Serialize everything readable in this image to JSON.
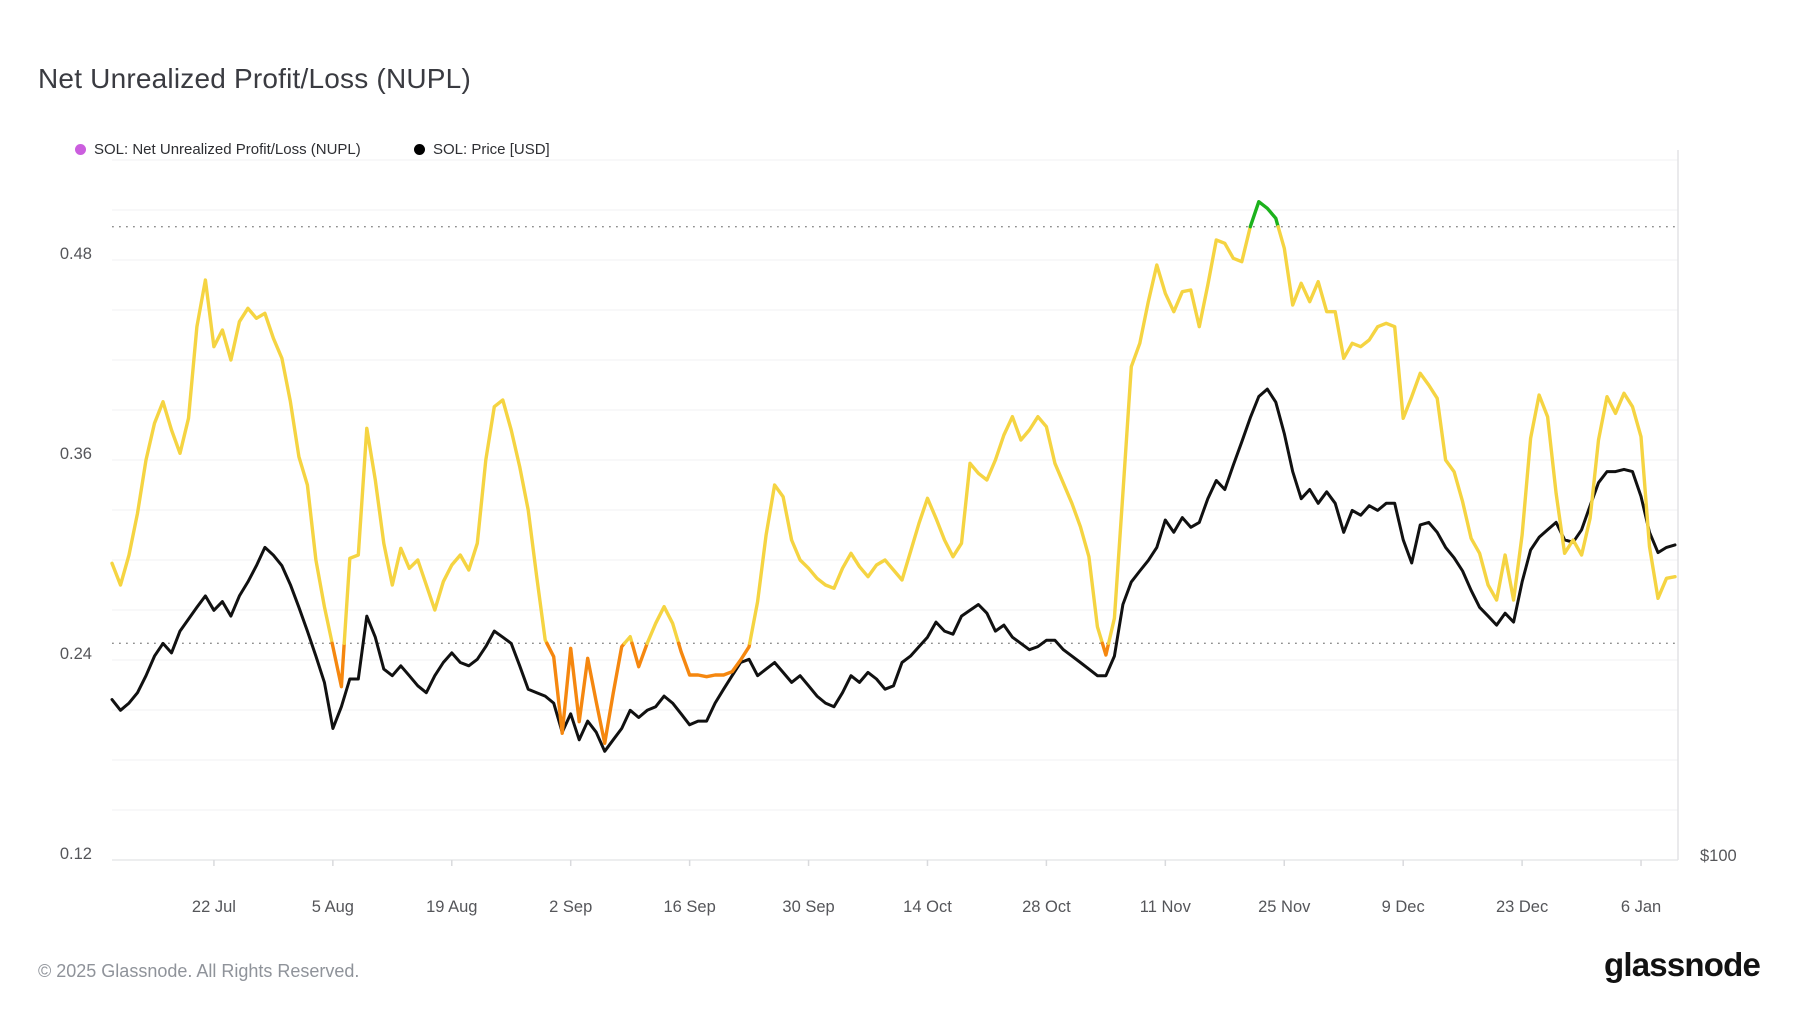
{
  "header": {
    "title": "Net Unrealized Profit/Loss (NUPL)"
  },
  "legend": [
    {
      "label": "SOL: Net Unrealized Profit/Loss (NUPL)",
      "dot_color": "#cb5ede"
    },
    {
      "label": "SOL: Price [USD]",
      "dot_color": "#000000"
    }
  ],
  "footer": {
    "copyright": "© 2025 Glassnode. All Rights Reserved.",
    "logo_text": "glassnode"
  },
  "chart_data": {
    "type": "line",
    "title": "Net Unrealized Profit/Loss (NUPL)",
    "start_date": "2024-07-10",
    "end_date": "2025-01-10",
    "x_tick_labels": [
      "22 Jul",
      "5 Aug",
      "19 Aug",
      "2 Sep",
      "16 Sep",
      "30 Sep",
      "14 Oct",
      "28 Oct",
      "11 Nov",
      "25 Nov",
      "9 Dec",
      "23 Dec",
      "6 Jan"
    ],
    "x_tick_day_offsets": [
      12,
      26,
      40,
      54,
      68,
      82,
      96,
      110,
      124,
      138,
      152,
      166,
      180
    ],
    "y_left_axis": {
      "tick_labels": [
        "0.12",
        "0.24",
        "0.36",
        "0.48"
      ],
      "tick_values": [
        0.12,
        0.24,
        0.36,
        0.48
      ],
      "min": 0.12,
      "grid_step": 0.03,
      "threshold_lines": [
        0.25,
        0.5
      ]
    },
    "y_right_axis": {
      "tick_label": "$100",
      "tick_value": 100,
      "scale": "log"
    },
    "grid": "on",
    "legend_position": "top-left",
    "series": [
      {
        "name": "SOL: Net Unrealized Profit/Loss (NUPL)",
        "legend_color": "#cb5ede",
        "zone_colors": {
          "below_0_25": "#f5870f",
          "between": "#f5d442",
          "above_0_5": "#1cb21c"
        },
        "values": [
          0.298,
          0.285,
          0.303,
          0.328,
          0.36,
          0.382,
          0.395,
          0.378,
          0.364,
          0.385,
          0.44,
          0.468,
          0.428,
          0.438,
          0.42,
          0.443,
          0.451,
          0.445,
          0.448,
          0.433,
          0.421,
          0.395,
          0.362,
          0.345,
          0.3,
          0.272,
          0.248,
          0.224,
          0.301,
          0.303,
          0.379,
          0.348,
          0.31,
          0.285,
          0.307,
          0.295,
          0.3,
          0.285,
          0.27,
          0.287,
          0.297,
          0.303,
          0.294,
          0.31,
          0.36,
          0.392,
          0.396,
          0.378,
          0.356,
          0.33,
          0.29,
          0.252,
          0.242,
          0.196,
          0.247,
          0.203,
          0.241,
          0.215,
          0.19,
          0.22,
          0.248,
          0.254,
          0.236,
          0.25,
          0.262,
          0.272,
          0.262,
          0.245,
          0.231,
          0.231,
          0.23,
          0.231,
          0.231,
          0.233,
          0.24,
          0.248,
          0.275,
          0.315,
          0.345,
          0.338,
          0.312,
          0.3,
          0.295,
          0.289,
          0.285,
          0.283,
          0.295,
          0.304,
          0.296,
          0.29,
          0.297,
          0.3,
          0.294,
          0.288,
          0.305,
          0.322,
          0.337,
          0.325,
          0.312,
          0.302,
          0.31,
          0.358,
          0.352,
          0.348,
          0.36,
          0.375,
          0.386,
          0.372,
          0.378,
          0.386,
          0.38,
          0.358,
          0.346,
          0.334,
          0.32,
          0.302,
          0.26,
          0.243,
          0.265,
          0.34,
          0.416,
          0.43,
          0.455,
          0.477,
          0.46,
          0.449,
          0.461,
          0.462,
          0.44,
          0.465,
          0.492,
          0.49,
          0.481,
          0.479,
          0.5,
          0.515,
          0.511,
          0.505,
          0.487,
          0.453,
          0.466,
          0.455,
          0.467,
          0.449,
          0.449,
          0.421,
          0.43,
          0.428,
          0.432,
          0.44,
          0.442,
          0.44,
          0.385,
          0.398,
          0.412,
          0.405,
          0.397,
          0.36,
          0.353,
          0.335,
          0.313,
          0.304,
          0.285,
          0.276,
          0.303,
          0.276,
          0.315,
          0.373,
          0.399,
          0.386,
          0.34,
          0.304,
          0.312,
          0.303,
          0.325,
          0.372,
          0.398,
          0.388,
          0.4,
          0.392,
          0.374,
          0.308,
          0.277,
          0.289,
          0.29
        ]
      },
      {
        "name": "SOL: Price [USD]",
        "color": "#111111",
        "unit": "USD",
        "values": [
          139,
          136,
          138,
          141,
          146,
          152,
          156,
          153,
          160,
          164,
          168,
          172,
          167,
          170,
          165,
          172,
          177,
          183,
          190,
          187,
          183,
          176,
          168,
          160,
          152,
          144,
          131,
          137,
          145,
          145,
          165,
          158,
          148,
          146,
          149,
          146,
          143,
          141,
          146,
          150,
          153,
          150,
          149,
          151,
          155,
          160,
          158,
          156,
          149,
          142,
          141,
          140,
          138,
          130,
          135,
          128,
          133,
          130,
          125,
          128,
          131,
          136,
          134,
          136,
          137,
          140,
          138,
          135,
          132,
          133,
          133,
          138,
          142,
          146,
          150,
          151,
          146,
          148,
          150,
          147,
          144,
          146,
          143,
          140,
          138,
          137,
          141,
          146,
          144,
          147,
          145,
          142,
          143,
          150,
          152,
          155,
          158,
          163,
          160,
          159,
          165,
          167,
          169,
          166,
          160,
          162,
          158,
          156,
          154,
          155,
          157,
          157,
          154,
          152,
          150,
          148,
          146,
          146,
          152,
          169,
          177,
          181,
          185,
          190,
          201,
          196,
          202,
          198,
          200,
          210,
          218,
          214,
          225,
          236,
          248,
          259,
          263,
          256,
          240,
          222,
          210,
          214,
          208,
          213,
          208,
          196,
          205,
          203,
          207,
          205,
          208,
          208,
          193,
          184,
          199,
          200,
          196,
          190,
          186,
          181,
          174,
          168,
          165,
          162,
          166,
          163,
          177,
          189,
          194,
          197,
          200,
          193,
          192,
          197,
          207,
          217,
          222,
          222,
          223,
          222,
          211,
          196,
          188,
          190,
          191
        ]
      }
    ]
  }
}
